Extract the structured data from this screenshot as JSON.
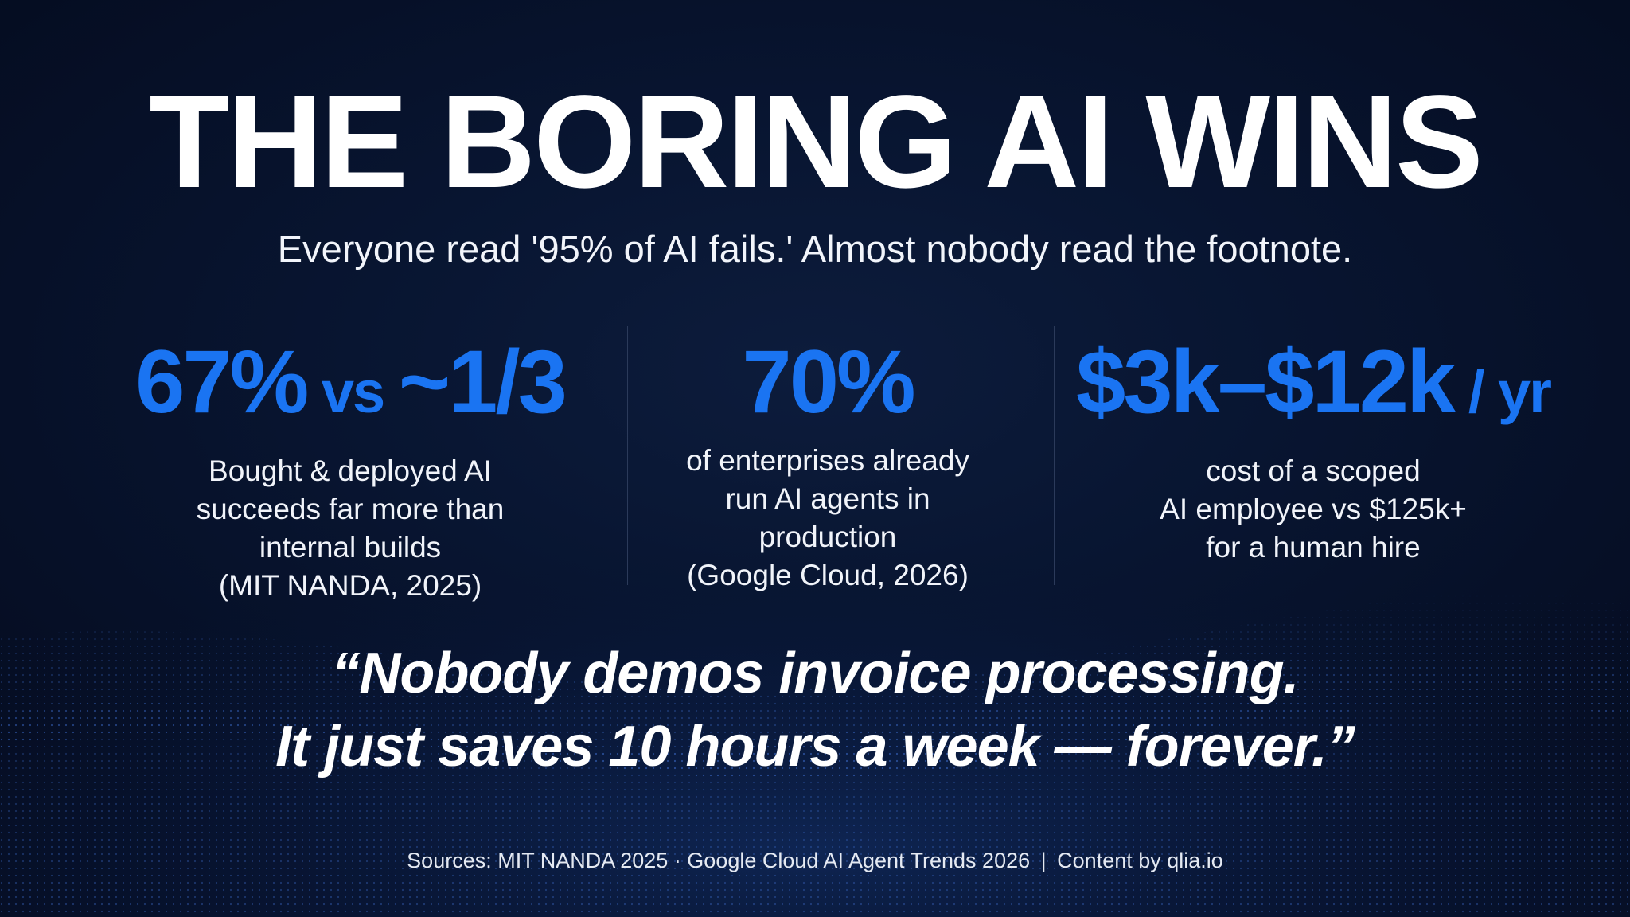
{
  "title": "THE BORING AI WINS",
  "subtitle": "Everyone read '95% of AI fails.' Almost nobody read the footnote.",
  "stats": [
    {
      "value_main": "67%",
      "value_mid": " vs ",
      "value_end": "~1/3",
      "desc_lines": [
        "Bought & deployed AI",
        "succeeds far more than",
        "internal builds",
        "(MIT NANDA, 2025)"
      ]
    },
    {
      "value_main": "70%",
      "desc_lines": [
        "of enterprises already",
        "run AI agents in",
        "production",
        "(Google Cloud, 2026)"
      ]
    },
    {
      "value_main": "$3k–$12k",
      "value_suffix": " / yr",
      "desc_lines": [
        "cost of a scoped",
        "AI employee vs $125k+",
        "for a human hire"
      ]
    }
  ],
  "quote": {
    "line1": "“Nobody demos invoice processing.",
    "line2": "It just saves 10 hours a week — forever.”"
  },
  "footer": {
    "sources": "Sources: MIT NANDA 2025 · Google Cloud AI Agent Trends 2026",
    "separator": "|",
    "credit": "Content by qlia.io"
  },
  "colors": {
    "accent": "#1a74f2",
    "background": "#061027",
    "text": "#ffffff"
  }
}
